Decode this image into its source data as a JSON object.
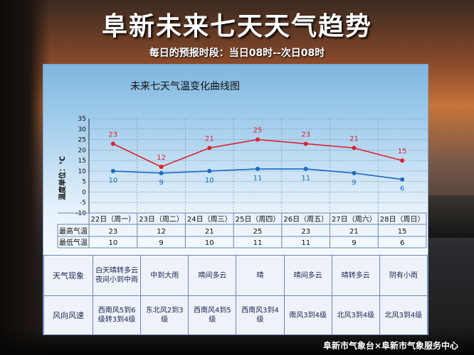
{
  "header": {
    "title": "阜新未来七天天气趋势",
    "subtitle": "每日的预报时段：当日08时--次日08时"
  },
  "colors": {
    "high": "#e02030",
    "low": "#1a6cc0",
    "grid": "#6a86a8"
  },
  "chart_data": {
    "type": "line",
    "title": "未来七天气温变化曲线图",
    "ylabel": "温度单位：℃",
    "xlabel": "",
    "ylim": [
      -10,
      35
    ],
    "yticks": [
      -10,
      -5,
      0,
      5,
      10,
      15,
      20,
      25,
      30,
      35
    ],
    "categories": [
      "22日（周一）",
      "23日（周二）",
      "24日（周三）",
      "25日（周四）",
      "26日（周五）",
      "27日（周六）",
      "28日（周日）"
    ],
    "series": [
      {
        "name": "最高气温",
        "values": [
          23,
          12,
          21,
          25,
          23,
          21,
          15
        ]
      },
      {
        "name": "最低气温",
        "values": [
          10,
          9,
          10,
          11,
          11,
          9,
          6
        ]
      }
    ],
    "grid": true
  },
  "table": {
    "row_labels": {
      "high": "最高气温",
      "low": "最低气温",
      "weather": "天气现象",
      "wind": "风向风速"
    },
    "weather": [
      "白天晴转多云夜间小到中雨",
      "中到大雨",
      "晴间多云",
      "晴",
      "晴间多云",
      "晴转多云",
      "阴有小雨"
    ],
    "wind": [
      "西南风5到6级转3到4级",
      "东北风2到3级",
      "西南风4到5级",
      "西南风3到4级",
      "南风3到4级",
      "北风3到4级",
      "北风3到4级"
    ]
  },
  "footer": "阜新市气象台×阜新市气象服务中心"
}
